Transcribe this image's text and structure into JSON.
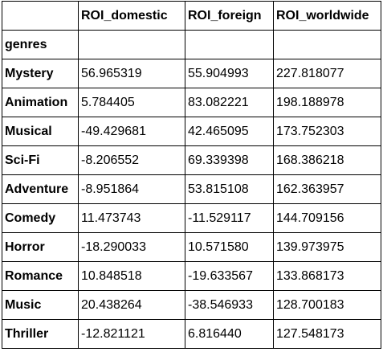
{
  "table": {
    "columns": [
      "",
      "ROI_domestic",
      "ROI_foreign",
      "ROI_worldwide"
    ],
    "index_name": "genres",
    "rows": [
      {
        "genre": "Mystery",
        "ROI_domestic": "56.965319",
        "ROI_foreign": "55.904993",
        "ROI_worldwide": "227.818077"
      },
      {
        "genre": "Animation",
        "ROI_domestic": "5.784405",
        "ROI_foreign": "83.082221",
        "ROI_worldwide": "198.188978"
      },
      {
        "genre": "Musical",
        "ROI_domestic": "-49.429681",
        "ROI_foreign": "42.465095",
        "ROI_worldwide": "173.752303"
      },
      {
        "genre": "Sci-Fi",
        "ROI_domestic": "-8.206552",
        "ROI_foreign": "69.339398",
        "ROI_worldwide": "168.386218"
      },
      {
        "genre": "Adventure",
        "ROI_domestic": "-8.951864",
        "ROI_foreign": "53.815108",
        "ROI_worldwide": "162.363957"
      },
      {
        "genre": "Comedy",
        "ROI_domestic": "11.473743",
        "ROI_foreign": "-11.529117",
        "ROI_worldwide": "144.709156"
      },
      {
        "genre": "Horror",
        "ROI_domestic": "-18.290033",
        "ROI_foreign": "10.571580",
        "ROI_worldwide": "139.973975"
      },
      {
        "genre": "Romance",
        "ROI_domestic": "10.848518",
        "ROI_foreign": "-19.633567",
        "ROI_worldwide": "133.868173"
      },
      {
        "genre": "Music",
        "ROI_domestic": "20.438264",
        "ROI_foreign": "-38.546933",
        "ROI_worldwide": "128.700183"
      },
      {
        "genre": "Thriller",
        "ROI_domestic": "-12.821121",
        "ROI_foreign": "6.816440",
        "ROI_worldwide": "127.548173"
      }
    ]
  }
}
